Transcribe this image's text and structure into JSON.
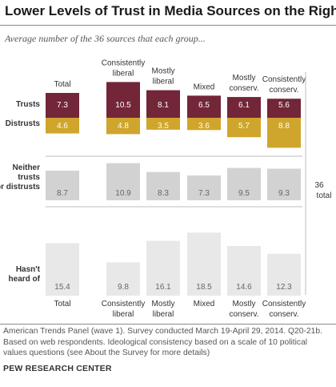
{
  "title": "Lower Levels of Trust in Media Sources on the Right",
  "subtitle": "Average number of the 36 sources that each group...",
  "note": "American Trends Panel (wave 1). Survey conducted March 19-April 29, 2014. Q20-21b. Based on web respondents. Ideological consistency based on a scale of 10 political values questions (see About the Survey for more details)",
  "source": "PEW RESEARCH CENTER",
  "colors": {
    "trusts": "#722638",
    "distrusts": "#cfa52c",
    "neither": "#d2d2d2",
    "unheard": "#e8e8e8",
    "value_light": "#ffffff",
    "value_dark": "#666666"
  },
  "chart_data": {
    "type": "bar",
    "categories_top": [
      "Total",
      "Consistently liberal",
      "Mostly liberal",
      "Mixed",
      "Mostly conserv.",
      "Consistently conserv."
    ],
    "categories_bottom": [
      "Total",
      "Consistently liberal",
      "Mostly liberal",
      "Mixed",
      "Mostly conserv.",
      "Consistently conserv."
    ],
    "series": [
      {
        "name": "Trusts",
        "values": [
          7.3,
          10.5,
          8.1,
          6.5,
          6.1,
          5.6
        ]
      },
      {
        "name": "Distrusts",
        "values": [
          4.6,
          4.8,
          3.5,
          3.6,
          5.7,
          8.8
        ]
      },
      {
        "name": "Neither trusts nor distrusts",
        "values": [
          8.7,
          10.9,
          8.3,
          7.3,
          9.5,
          9.3
        ]
      },
      {
        "name": "Hasn't heard of",
        "values": [
          15.4,
          9.8,
          16.1,
          18.5,
          14.6,
          12.3
        ]
      }
    ],
    "row_labels": [
      "Trusts",
      "Distrusts",
      "Neither trusts nor distrusts",
      "Hasn't heard of"
    ],
    "total_annotation": "36 total"
  }
}
